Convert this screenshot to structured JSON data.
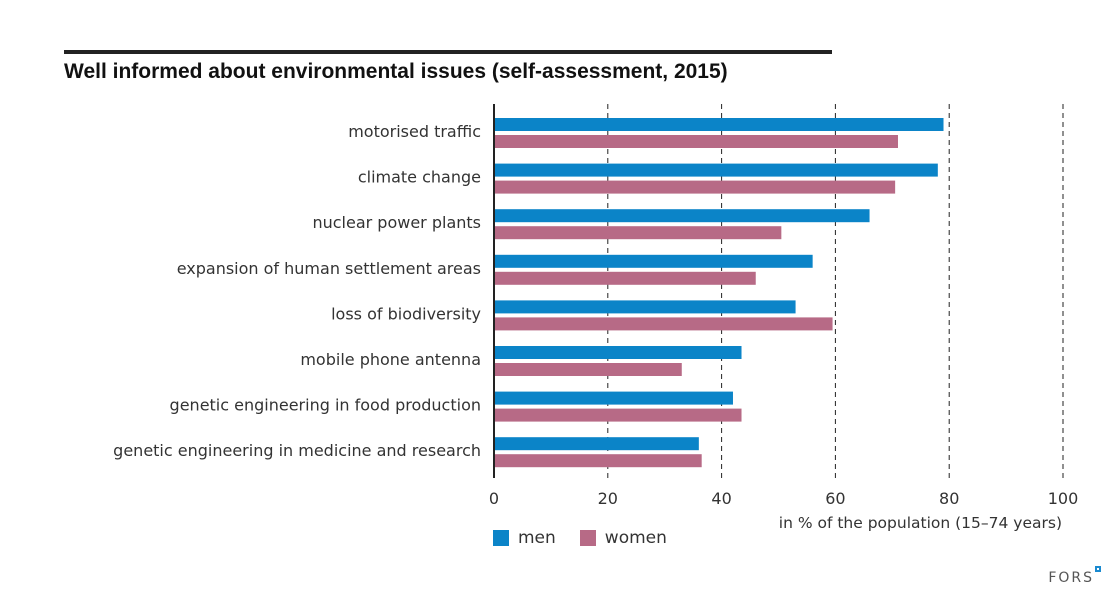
{
  "chart_data": {
    "type": "bar",
    "orientation": "horizontal",
    "title": "Well informed about environmental issues (self-assessment, 2015)",
    "xlabel": "in % of the population (15–74 years)",
    "ylabel": "",
    "xlim": [
      0,
      100
    ],
    "xticks": [
      0,
      20,
      40,
      60,
      80,
      100
    ],
    "grid": true,
    "legend_position": "bottom-left",
    "categories": [
      "motorised traffic",
      "climate change",
      "nuclear power plants",
      "expansion of human settlement areas",
      "loss of biodiversity",
      "mobile phone antenna",
      "genetic engineering in food production",
      "genetic engineering in medicine and research"
    ],
    "series": [
      {
        "name": "men",
        "color": "#0b84c8",
        "values": [
          79,
          78,
          66,
          56,
          53,
          43.5,
          42,
          36
        ]
      },
      {
        "name": "women",
        "color": "#b76a86",
        "values": [
          71,
          70.5,
          50.5,
          46,
          59.5,
          33,
          43.5,
          36.5
        ]
      }
    ]
  },
  "legend": {
    "men": "men",
    "women": "women"
  },
  "logo": {
    "text": "FORS"
  }
}
